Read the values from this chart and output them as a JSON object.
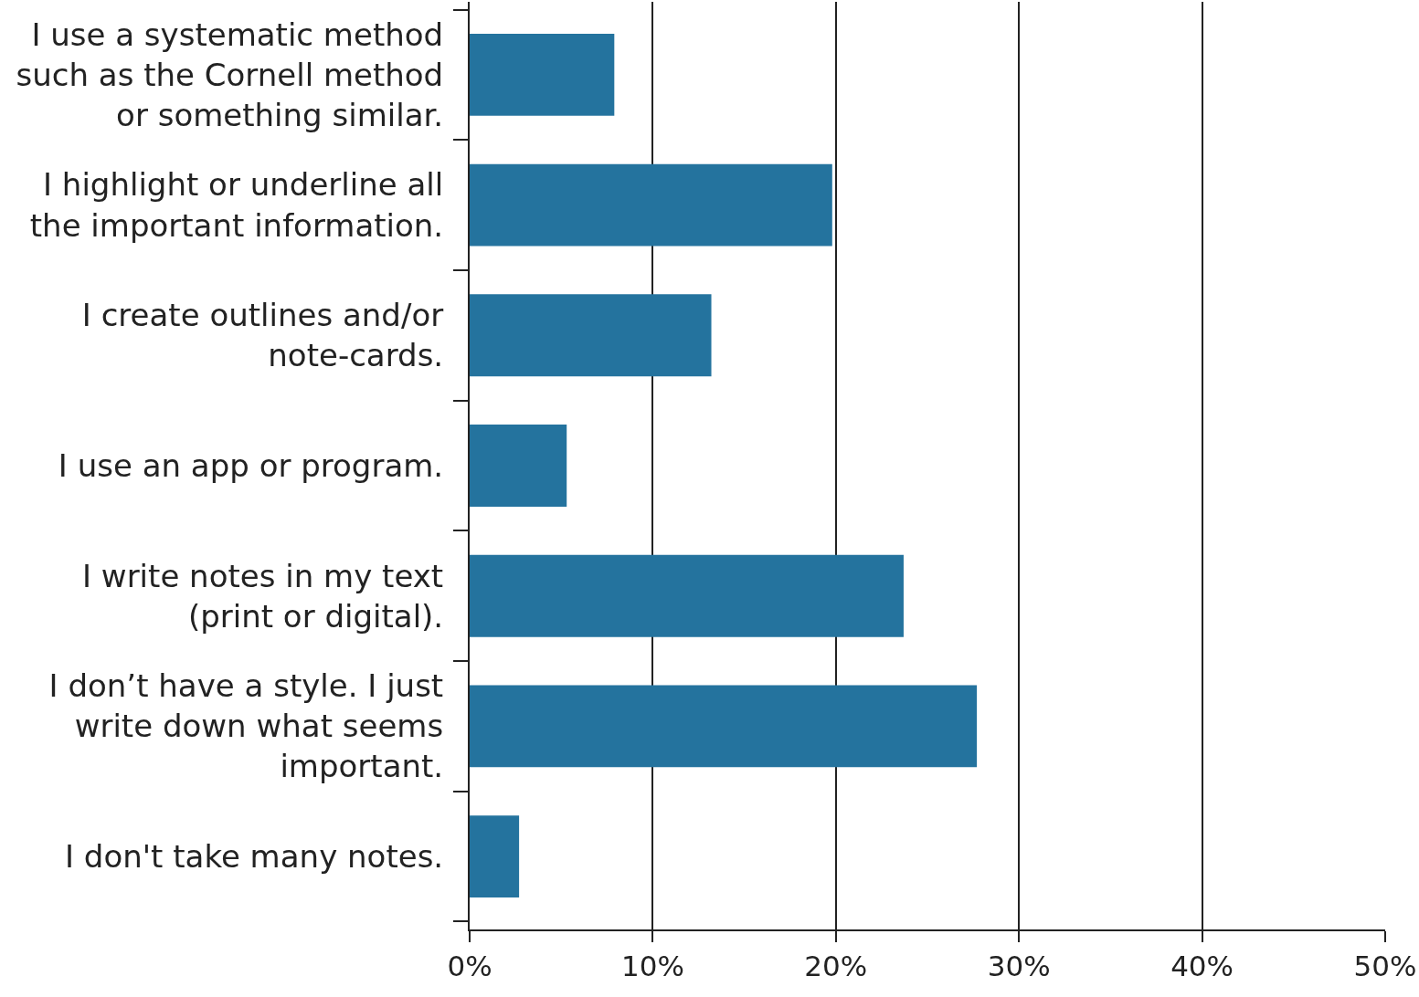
{
  "chart_data": {
    "type": "bar",
    "orientation": "horizontal",
    "categories": [
      "I use a systematic method such as the Cornell method or something similar.",
      "I highlight or underline all the important information.",
      "I create outlines and/or note-cards.",
      "I use an app or program.",
      "I write notes in my text (print or digital).",
      "I don’t have a style. I just write down what seems important.",
      "I don't take many notes."
    ],
    "values": [
      7.9,
      19.8,
      13.2,
      5.3,
      23.7,
      27.7,
      2.7
    ],
    "color": "#24739e",
    "xlim": [
      0,
      50
    ],
    "xticks": [
      {
        "value": 0,
        "label": "0%"
      },
      {
        "value": 10,
        "label": "10%"
      },
      {
        "value": 20,
        "label": "20%"
      },
      {
        "value": 30,
        "label": "30%"
      },
      {
        "value": 40,
        "label": "40%"
      },
      {
        "value": 50,
        "label": "50%"
      }
    ],
    "grid": "x"
  }
}
